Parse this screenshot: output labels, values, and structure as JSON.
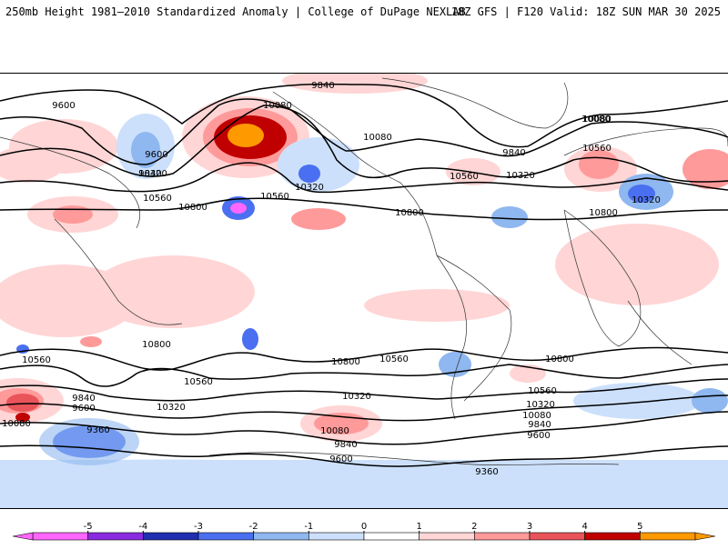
{
  "header": {
    "title_left": "250mb Height 1981–2010 Standardized Anomaly | College of DuPage NEXLAB",
    "title_right": "18Z GFS | F120 Valid: 18Z SUN MAR 30 2025"
  },
  "contour_labels": [
    "9840",
    "9600",
    "10080",
    "10080",
    "9600",
    "9840",
    "10320",
    "10560",
    "10800",
    "10560",
    "10080",
    "10320",
    "9840",
    "10560",
    "10320",
    "10800",
    "10080",
    "10560",
    "10320",
    "10800",
    "10800",
    "10560",
    "10800",
    "10560",
    "10800",
    "10560",
    "10320",
    "10320",
    "10560",
    "9840",
    "9600",
    "10080",
    "9360",
    "10080",
    "9840",
    "9600",
    "10320",
    "10080",
    "9840",
    "9600",
    "9360"
  ],
  "colorbar": {
    "tick_labels": [
      "-5",
      "-4",
      "-3",
      "-2",
      "-1",
      "0",
      "1",
      "2",
      "3",
      "4",
      "5"
    ],
    "colors": [
      "#ff66ff",
      "#8a2be2",
      "#1f2fb0",
      "#4a6ff0",
      "#8fb7f0",
      "#cce0fb",
      "#ffffff",
      "#ffd5d5",
      "#ff9a9a",
      "#e9545a",
      "#c00000",
      "#ff9900"
    ],
    "legend_arrows": "both"
  }
}
